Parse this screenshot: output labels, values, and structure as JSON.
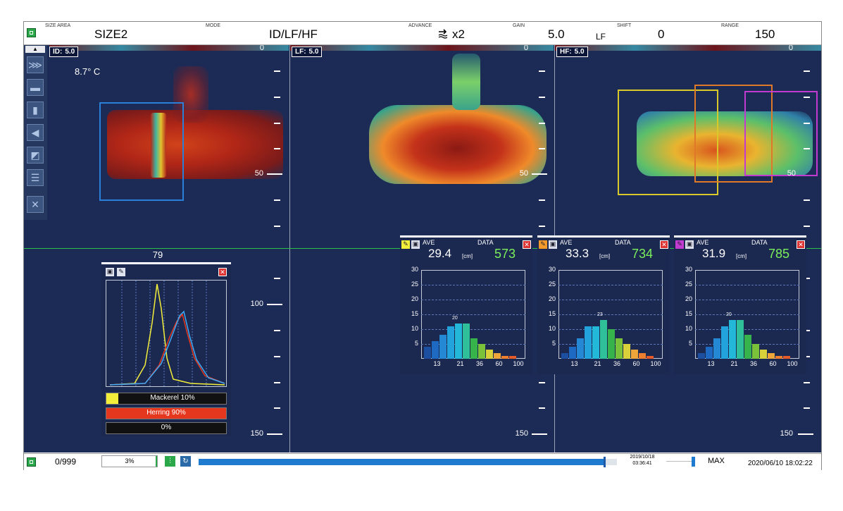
{
  "topbar": {
    "size_area_label": "SIZE AREA",
    "size_area_value": "SIZE2",
    "mode_label": "MODE",
    "mode_value": "ID/LF/HF",
    "advance_label": "ADVANCE",
    "advance_value": "x2",
    "gain_label": "GAIN",
    "gain_value": "5.0",
    "gain_sub": "LF",
    "shift_label": "SHIFT",
    "shift_value": "0",
    "range_label": "RANGE",
    "range_value": "150"
  },
  "panels": [
    {
      "channel": "ID:",
      "gain": "5.0",
      "top": "0",
      "mid": "50",
      "deep": "100",
      "bottom": "150"
    },
    {
      "channel": "LF:",
      "gain": "5.0",
      "top": "0",
      "mid": "50",
      "bottom": "150"
    },
    {
      "channel": "HF:",
      "gain": "5.0",
      "top": "0",
      "mid": "50",
      "bottom": "150"
    }
  ],
  "temperature": "8.7° C",
  "cursor_depth": "79",
  "species_popup": {
    "rows": [
      "Mackerel  10%",
      "Herring  90%",
      "0%"
    ],
    "colors": [
      "#f3ee3a",
      "#e5371e",
      "#111111"
    ]
  },
  "size_popups": [
    {
      "ave_label": "AVE",
      "data_label": "DATA",
      "ave": "29.4",
      "unit": "[cm]",
      "data": "573",
      "peak_label": "20",
      "color": "#f3ee3a"
    },
    {
      "ave_label": "AVE",
      "data_label": "DATA",
      "ave": "33.3",
      "unit": "[cm]",
      "data": "734",
      "peak_label": "23",
      "color": "#f39a2a"
    },
    {
      "ave_label": "AVE",
      "data_label": "DATA",
      "ave": "31.9",
      "unit": "[cm]",
      "data": "785",
      "peak_label": "20",
      "color": "#c23bd1"
    }
  ],
  "hist_axis": {
    "y_ticks": [
      "30",
      "25",
      "20",
      "15",
      "10",
      "5"
    ],
    "x_ticks": [
      "13",
      "21",
      "36",
      "60",
      "100"
    ]
  },
  "chart_data": {
    "type": "bar",
    "title": "",
    "xlabel": "",
    "ylabel": "",
    "ylim": [
      0,
      30
    ],
    "series": [
      {
        "values": [
          4,
          6,
          8,
          11,
          12,
          12,
          7,
          5,
          3,
          2,
          1,
          1
        ]
      },
      {
        "values": [
          2,
          4,
          7,
          11,
          11,
          13,
          10,
          7,
          5,
          3,
          2,
          1
        ]
      },
      {
        "values": [
          2,
          4,
          7,
          11,
          13,
          13,
          8,
          5,
          3,
          2,
          1,
          1
        ]
      }
    ],
    "bar_colors": [
      "#1d4fa0",
      "#1e6ac2",
      "#2488d4",
      "#22a3dc",
      "#23b8d8",
      "#2fc09a",
      "#36b34a",
      "#7ac23a",
      "#d8d13a",
      "#eea63a",
      "#ef7f2e",
      "#e45a28"
    ]
  },
  "bottombar": {
    "counter": "0/999",
    "percent": "3%",
    "progress": 0.97,
    "date_small_1": "2019/10/18",
    "date_small_2": "03:36:41",
    "max_label": "MAX",
    "datetime": "2020/06/10 18:02:22"
  }
}
